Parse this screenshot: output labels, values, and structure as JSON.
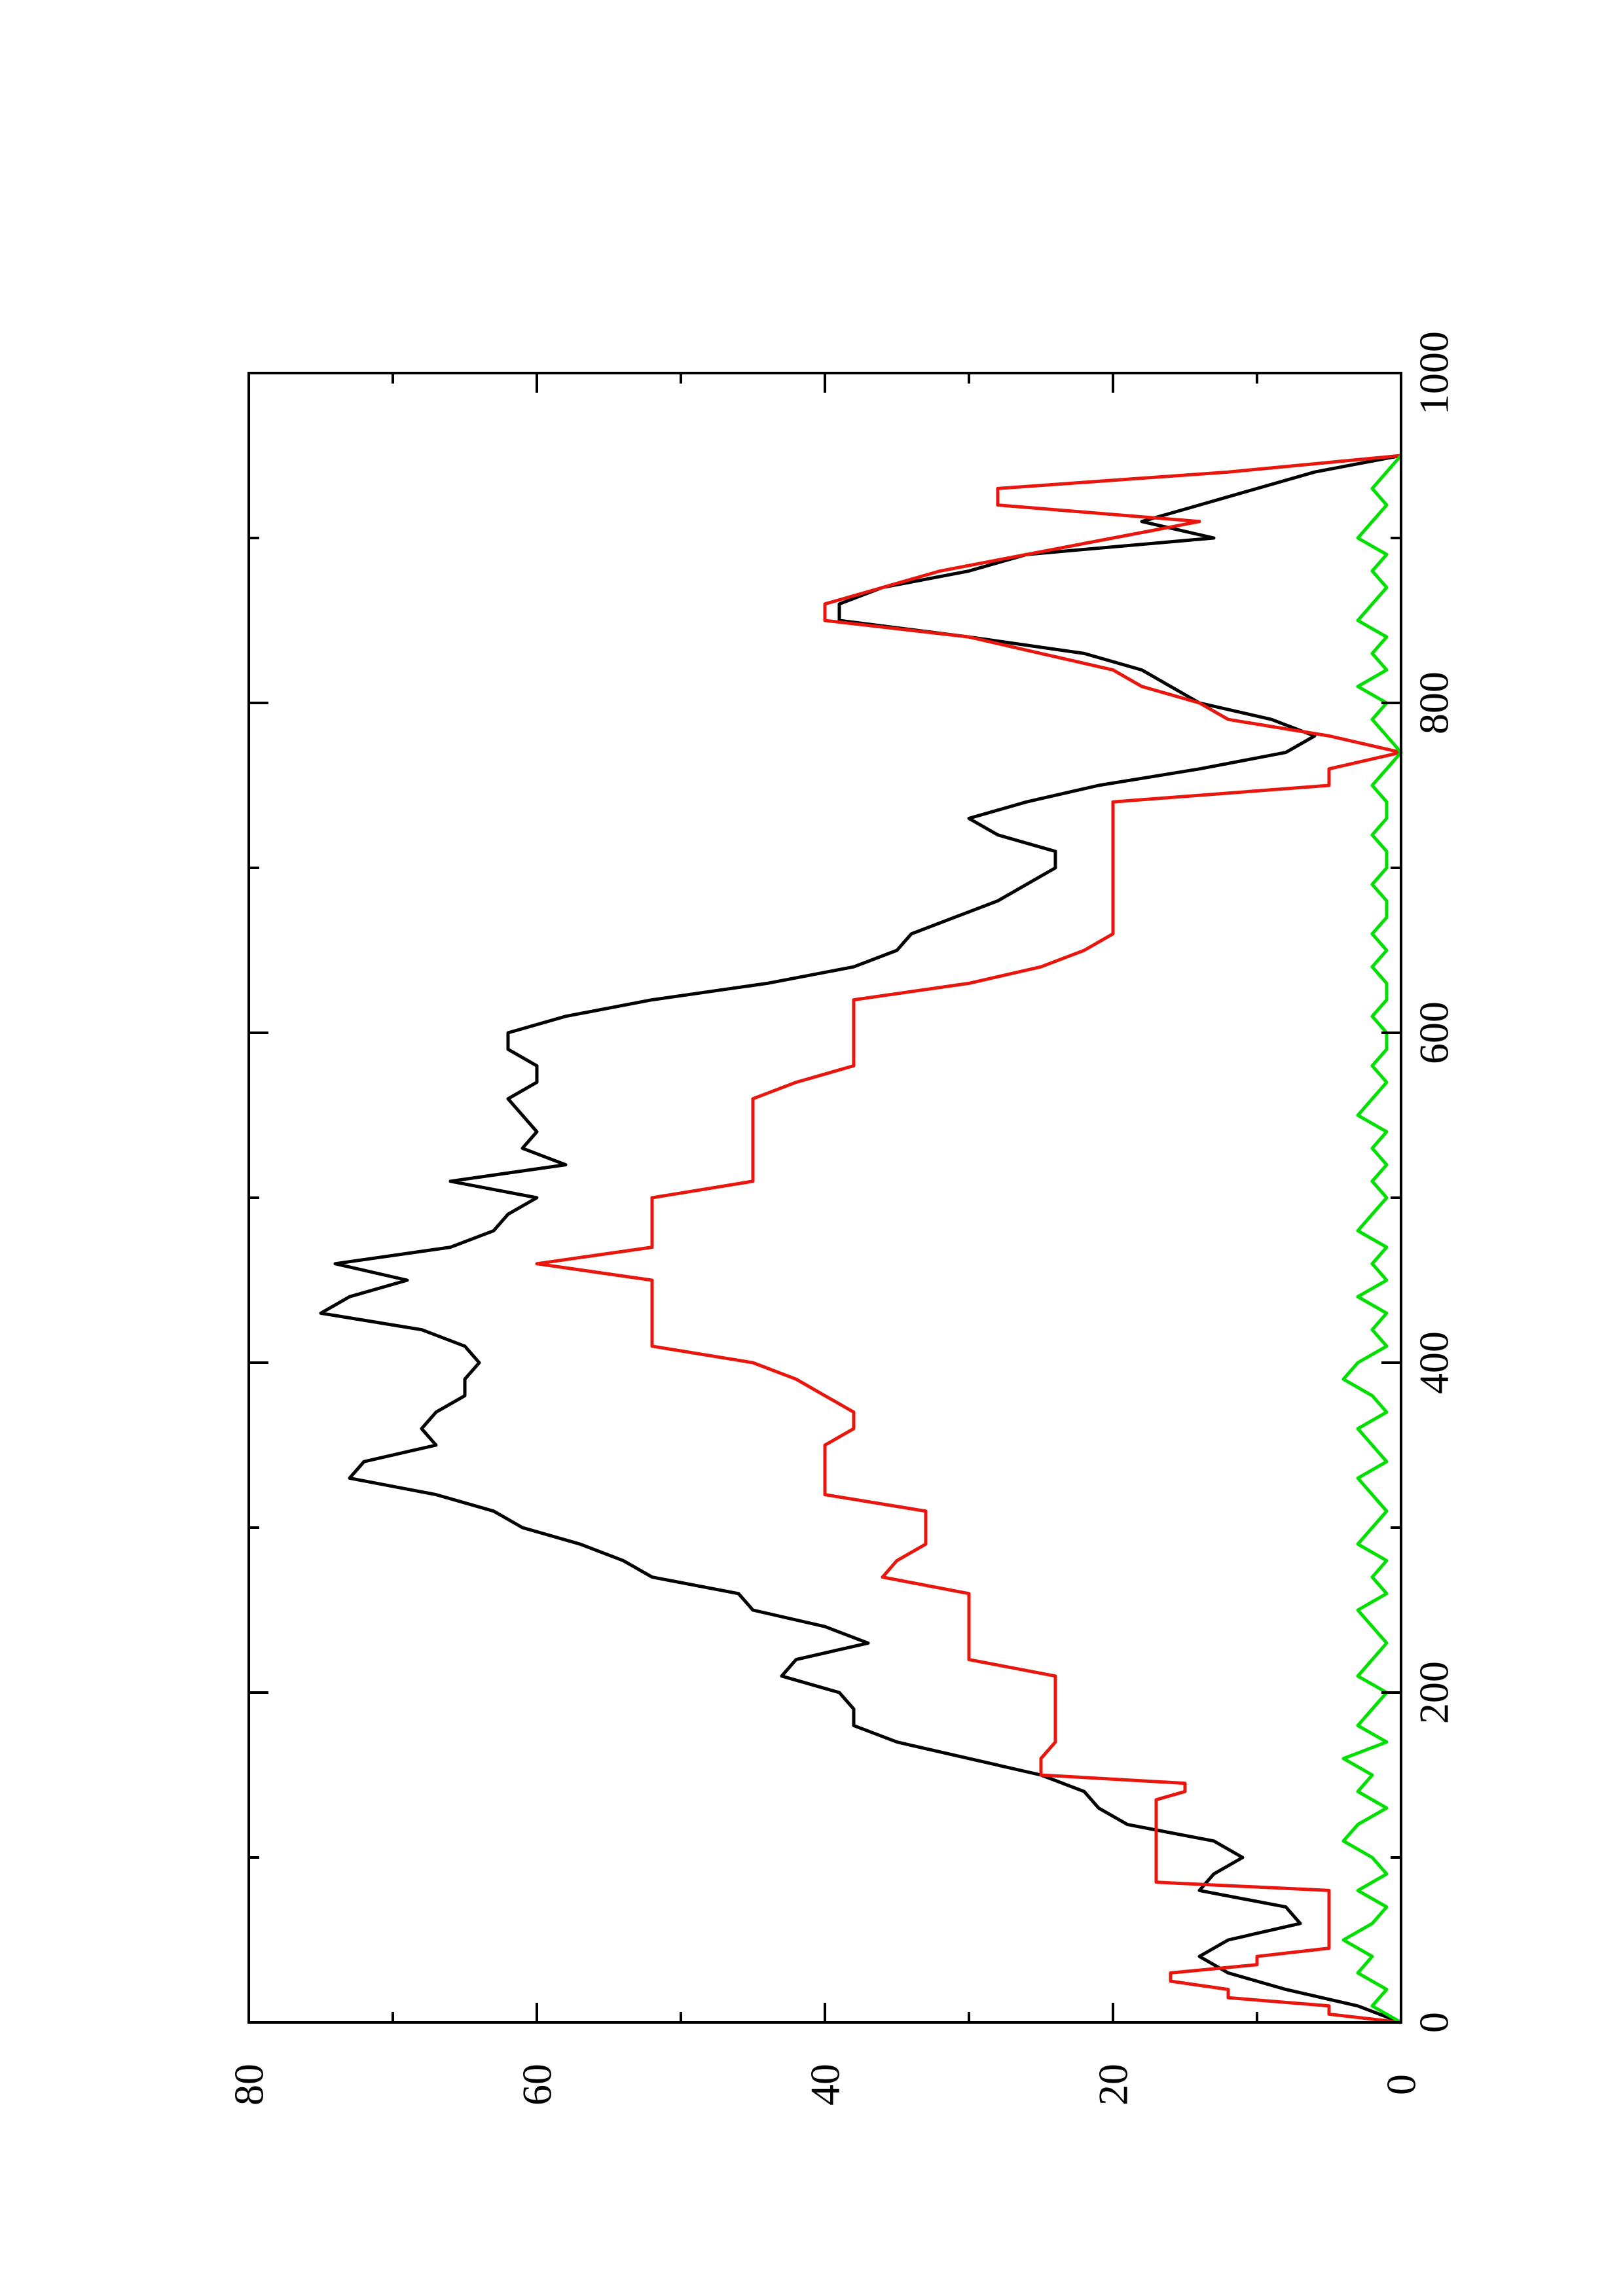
{
  "chart_data": {
    "type": "line",
    "orientation": "rotated-90-ccw",
    "title": "",
    "xlabel": "",
    "ylabel": "",
    "xlim": [
      0,
      1000
    ],
    "ylim": [
      0,
      80
    ],
    "x_ticks": [
      0,
      200,
      400,
      600,
      800,
      1000
    ],
    "x_tick_labels": [
      "0",
      "200",
      "400",
      "600",
      "800",
      "1000"
    ],
    "y_ticks": [
      0,
      20,
      40,
      60,
      80
    ],
    "y_tick_labels": [
      "0",
      "20",
      "40",
      "60",
      "80"
    ],
    "grid": false,
    "legend": "none",
    "series": [
      {
        "color": "#000000",
        "x": [
          0,
          10,
          20,
          30,
          35,
          40,
          50,
          60,
          70,
          80,
          90,
          100,
          110,
          120,
          130,
          140,
          150,
          160,
          170,
          180,
          190,
          200,
          210,
          220,
          230,
          240,
          250,
          260,
          270,
          280,
          290,
          300,
          310,
          320,
          330,
          340,
          350,
          360,
          370,
          380,
          390,
          400,
          410,
          420,
          430,
          440,
          450,
          460,
          470,
          480,
          490,
          500,
          505,
          510,
          520,
          530,
          540,
          550,
          560,
          570,
          580,
          590,
          600,
          610,
          620,
          630,
          640,
          650,
          660,
          670,
          680,
          690,
          700,
          710,
          720,
          730,
          740,
          750,
          760,
          770,
          780,
          790,
          800,
          810,
          820,
          830,
          840,
          850,
          860,
          870,
          880,
          890,
          900,
          910,
          920,
          930,
          940,
          950
        ],
        "y": [
          0,
          3,
          8,
          12,
          13,
          14,
          12,
          7,
          8,
          14,
          13,
          11,
          13,
          19,
          21,
          22,
          25,
          30,
          35,
          38,
          38,
          39,
          43,
          42,
          37,
          40,
          45,
          46,
          52,
          54,
          57,
          61,
          63,
          67,
          73,
          72,
          67,
          68,
          67,
          65,
          65,
          64,
          65,
          68,
          75,
          73,
          69,
          74,
          66,
          63,
          62,
          60,
          63,
          66,
          58,
          61,
          60,
          61,
          62,
          60,
          60,
          62,
          62,
          58,
          52,
          44,
          38,
          35,
          34,
          31,
          28,
          26,
          24,
          24,
          28,
          30,
          26,
          21,
          14,
          8,
          6,
          9,
          14,
          16,
          18,
          22,
          30,
          39,
          39,
          36,
          30,
          26,
          13,
          18,
          14,
          10,
          6,
          0
        ]
      },
      {
        "color": "#e8160c",
        "x": [
          0,
          5,
          10,
          15,
          20,
          25,
          30,
          35,
          40,
          45,
          50,
          55,
          60,
          65,
          70,
          75,
          80,
          85,
          90,
          95,
          100,
          105,
          110,
          115,
          120,
          125,
          130,
          135,
          140,
          145,
          150,
          160,
          170,
          180,
          190,
          200,
          210,
          220,
          230,
          240,
          250,
          260,
          270,
          280,
          290,
          300,
          310,
          320,
          330,
          340,
          350,
          360,
          370,
          380,
          390,
          400,
          410,
          420,
          430,
          440,
          450,
          460,
          470,
          480,
          490,
          500,
          510,
          520,
          530,
          540,
          550,
          560,
          570,
          580,
          590,
          600,
          610,
          620,
          630,
          640,
          650,
          660,
          670,
          680,
          690,
          700,
          710,
          720,
          730,
          740,
          750,
          760,
          770,
          780,
          790,
          800,
          810,
          820,
          830,
          840,
          850,
          860,
          870,
          880,
          890,
          900,
          910,
          920,
          930,
          940,
          950
        ],
        "y": [
          0,
          5,
          5,
          12,
          12,
          16,
          16,
          10,
          10,
          5,
          5,
          5,
          5,
          5,
          5,
          5,
          5,
          17,
          17,
          17,
          17,
          17,
          17,
          17,
          17,
          17,
          17,
          17,
          15,
          15,
          25,
          25,
          24,
          24,
          24,
          24,
          24,
          30,
          30,
          30,
          30,
          30,
          36,
          35,
          33,
          33,
          33,
          40,
          40,
          40,
          40,
          38,
          38,
          40,
          42,
          45,
          52,
          52,
          52,
          52,
          52,
          60,
          52,
          52,
          52,
          52,
          45,
          45,
          45,
          45,
          45,
          45,
          42,
          38,
          38,
          38,
          38,
          38,
          30,
          25,
          22,
          20,
          20,
          20,
          20,
          20,
          20,
          20,
          20,
          20,
          5,
          5,
          0,
          5,
          12,
          14,
          18,
          20,
          25,
          30,
          40,
          40,
          36,
          32,
          26,
          20,
          14,
          28,
          28,
          12,
          0
        ]
      },
      {
        "color": "#00e000",
        "x": [
          0,
          10,
          20,
          30,
          40,
          50,
          60,
          70,
          80,
          90,
          100,
          110,
          120,
          130,
          140,
          150,
          160,
          170,
          180,
          190,
          200,
          210,
          220,
          230,
          240,
          250,
          260,
          270,
          280,
          290,
          300,
          310,
          320,
          330,
          340,
          350,
          360,
          370,
          380,
          390,
          400,
          410,
          420,
          430,
          440,
          450,
          460,
          470,
          480,
          490,
          500,
          510,
          520,
          530,
          540,
          550,
          560,
          570,
          580,
          590,
          600,
          610,
          620,
          630,
          640,
          650,
          660,
          670,
          680,
          690,
          700,
          710,
          720,
          730,
          740,
          750,
          760,
          770,
          780,
          790,
          800,
          810,
          820,
          830,
          840,
          850,
          860,
          870,
          880,
          890,
          900,
          910,
          920,
          930,
          940,
          950
        ],
        "y": [
          0,
          2,
          1,
          3,
          2,
          4,
          2,
          1,
          3,
          1,
          2,
          4,
          3,
          1,
          3,
          2,
          4,
          1,
          3,
          2,
          1,
          3,
          2,
          1,
          2,
          3,
          1,
          2,
          1,
          3,
          2,
          1,
          2,
          3,
          1,
          2,
          3,
          1,
          2,
          4,
          3,
          1,
          2,
          1,
          3,
          1,
          2,
          1,
          3,
          2,
          1,
          2,
          1,
          2,
          1,
          3,
          2,
          1,
          2,
          1,
          1,
          2,
          1,
          1,
          2,
          1,
          2,
          1,
          1,
          2,
          1,
          1,
          2,
          1,
          1,
          2,
          1,
          0,
          1,
          2,
          1,
          3,
          1,
          2,
          1,
          3,
          2,
          1,
          2,
          1,
          3,
          2,
          1,
          2,
          1,
          0
        ]
      }
    ]
  }
}
